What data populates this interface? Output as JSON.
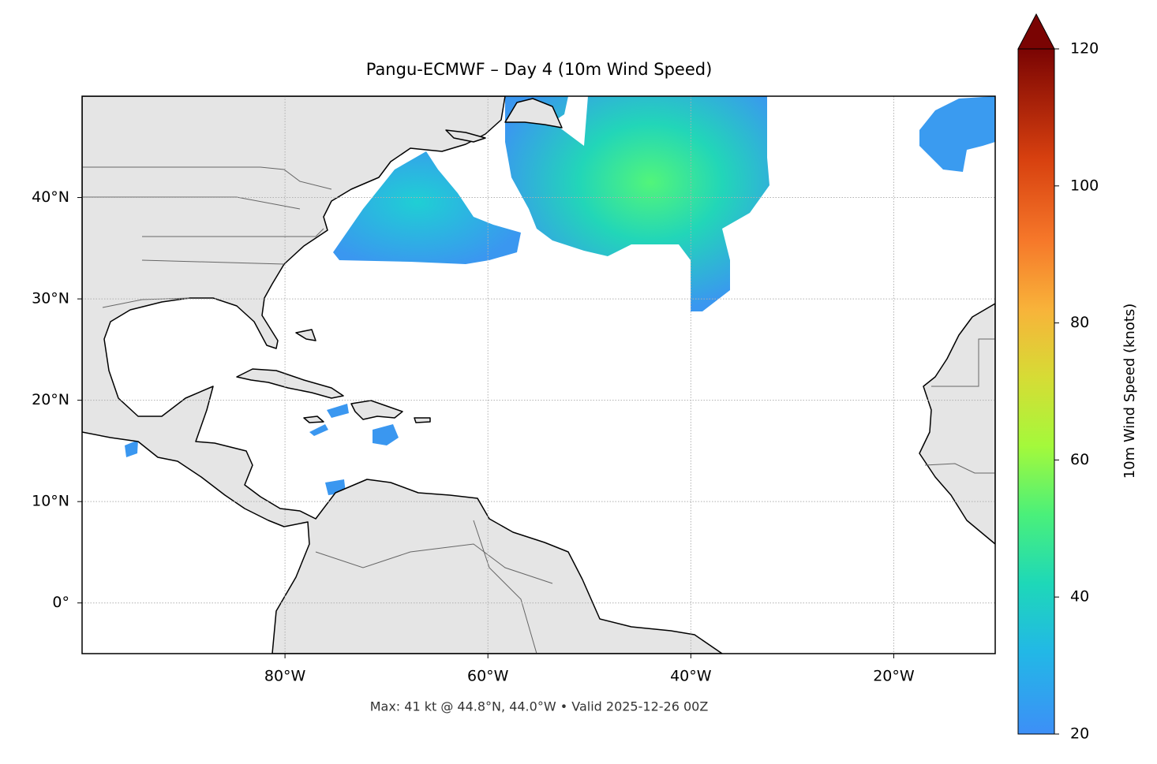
{
  "chart_data": {
    "type": "map",
    "title": "Pangu-ECMWF – Day 4 (10m Wind Speed)",
    "annotation": "Max: 41 kt @ 44.8°N, 44.0°W • Valid 2025-12-26 00Z",
    "xlim": [
      -100,
      -10
    ],
    "ylim": [
      -5,
      50
    ],
    "xticks": [
      {
        "value": -80,
        "label": "80°W"
      },
      {
        "value": -60,
        "label": "60°W"
      },
      {
        "value": -40,
        "label": "40°W"
      },
      {
        "value": -20,
        "label": "20°W"
      }
    ],
    "yticks": [
      {
        "value": 0,
        "label": "0°"
      },
      {
        "value": 10,
        "label": "10°N"
      },
      {
        "value": 20,
        "label": "20°N"
      },
      {
        "value": 30,
        "label": "30°N"
      },
      {
        "value": 40,
        "label": "40°N"
      }
    ],
    "grid": true,
    "colorbar": {
      "label": "10m Wind Speed (knots)",
      "lim": [
        20,
        120
      ],
      "ticks": [
        20,
        40,
        60,
        80,
        100,
        120
      ],
      "extend": "max"
    }
  }
}
